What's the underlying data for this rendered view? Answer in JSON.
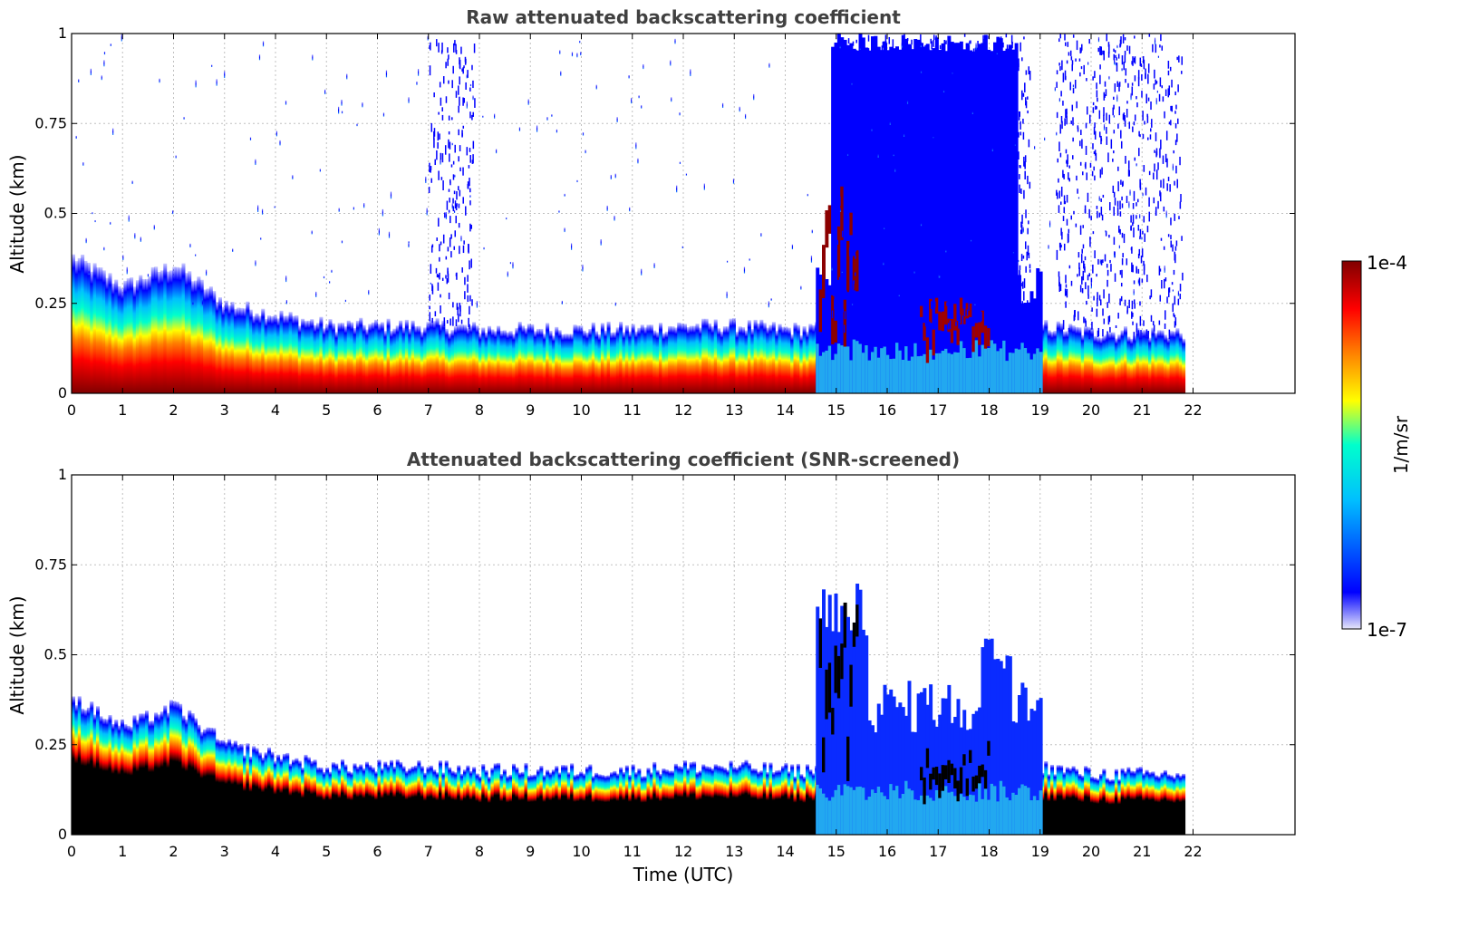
{
  "chart_data": [
    {
      "type": "heatmap",
      "title": "Raw attenuated backscattering coefficient",
      "xlabel": "",
      "ylabel": "Altitude (km)",
      "xlim": [
        0,
        24
      ],
      "ylim": [
        0,
        1
      ],
      "x_ticks": [
        "0",
        "1",
        "2",
        "3",
        "4",
        "5",
        "6",
        "7",
        "8",
        "9",
        "10",
        "11",
        "12",
        "13",
        "14",
        "15",
        "16",
        "17",
        "18",
        "19",
        "20",
        "21",
        "22"
      ],
      "y_ticks": [
        "0",
        "0.25",
        "0.5",
        "0.75",
        "1"
      ],
      "grid": true,
      "data_end_hour": 21.8,
      "layer_top_km": [
        [
          0,
          0.38
        ],
        [
          1,
          0.3
        ],
        [
          2,
          0.36
        ],
        [
          3,
          0.25
        ],
        [
          4,
          0.22
        ],
        [
          5,
          0.19
        ],
        [
          6,
          0.19
        ],
        [
          7,
          0.19
        ],
        [
          8,
          0.18
        ],
        [
          9,
          0.18
        ],
        [
          10,
          0.18
        ],
        [
          11,
          0.18
        ],
        [
          12,
          0.19
        ],
        [
          13,
          0.19
        ],
        [
          14,
          0.18
        ],
        [
          14.6,
          0.18
        ],
        [
          15,
          0.18
        ],
        [
          18.5,
          0.2
        ],
        [
          19,
          0.19
        ],
        [
          20,
          0.17
        ],
        [
          21,
          0.17
        ],
        [
          21.8,
          0.17
        ]
      ],
      "clutter_regions": [
        {
          "from": 7.0,
          "to": 7.9
        },
        {
          "from": 14.9,
          "to": 18.8
        },
        {
          "from": 19.3,
          "to": 21.8
        }
      ]
    },
    {
      "type": "heatmap",
      "title": "Attenuated backscattering coefficient (SNR-screened)",
      "xlabel": "Time (UTC)",
      "ylabel": "Altitude (km)",
      "xlim": [
        0,
        24
      ],
      "ylim": [
        0,
        1
      ],
      "x_ticks": [
        "0",
        "1",
        "2",
        "3",
        "4",
        "5",
        "6",
        "7",
        "8",
        "9",
        "10",
        "11",
        "12",
        "13",
        "14",
        "15",
        "16",
        "17",
        "18",
        "19",
        "20",
        "21",
        "22"
      ],
      "y_ticks": [
        "0",
        "0.25",
        "0.5",
        "0.75",
        "1"
      ],
      "grid": true,
      "data_end_hour": 21.8
    }
  ],
  "colorbar": {
    "label": "1/m/sr",
    "max_label": "1e-4",
    "min_label": "1e-7",
    "scale": "log",
    "colors": [
      "#e6e6fa",
      "#0000ff",
      "#00bfff",
      "#00ffcc",
      "#ffff00",
      "#ff8000",
      "#ff0000",
      "#800000"
    ]
  },
  "palette": {
    "background": "#ffffff",
    "title_text": "#404040",
    "grid": "#c0c0c0",
    "screened_core": "#000000"
  }
}
